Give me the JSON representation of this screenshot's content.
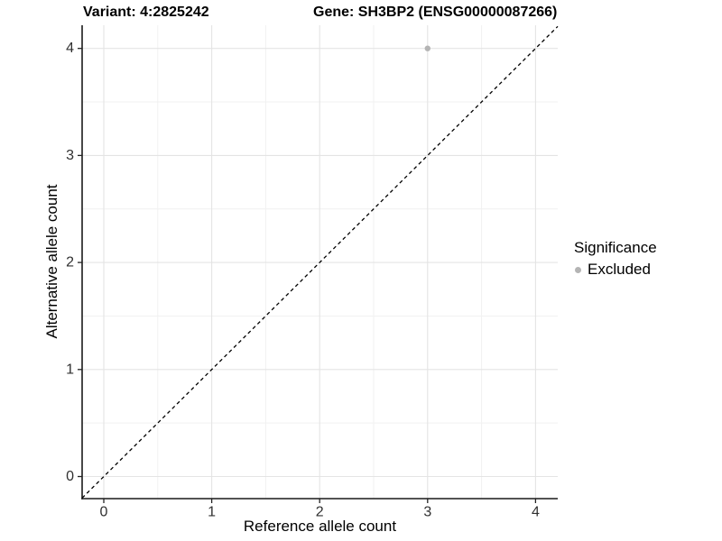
{
  "titles": {
    "variant": "Variant: 4:2825242",
    "gene": "Gene: SH3BP2 (ENSG00000087266)"
  },
  "chart_data": {
    "type": "scatter",
    "title": "Variant: 4:2825242  /  Gene: SH3BP2 (ENSG00000087266)",
    "xlabel": "Reference allele count",
    "ylabel": "Alternative allele count",
    "xlim": [
      -0.2,
      4.2
    ],
    "ylim": [
      -0.2,
      4.2
    ],
    "x_ticks": [
      0,
      1,
      2,
      3,
      4
    ],
    "y_ticks": [
      0,
      1,
      2,
      3,
      4
    ],
    "grid": true,
    "minor_grid": true,
    "reference_line": {
      "type": "identity",
      "slope": 1,
      "intercept": 0,
      "style": "dashed",
      "color": "#000000"
    },
    "series": [
      {
        "name": "Excluded",
        "color": "#b4b4b4",
        "points": [
          {
            "x": 3,
            "y": 4
          }
        ]
      }
    ],
    "legend": {
      "title": "Significance",
      "position": "right",
      "items": [
        {
          "label": "Excluded",
          "color": "#b4b4b4"
        }
      ]
    },
    "style": {
      "grid_major_color": "#e4e4e4",
      "grid_minor_color": "#f1f1f1",
      "axis_color": "#1a1a1a",
      "tick_color": "#222222",
      "tick_label_color": "#303030",
      "background": "#ffffff"
    }
  }
}
